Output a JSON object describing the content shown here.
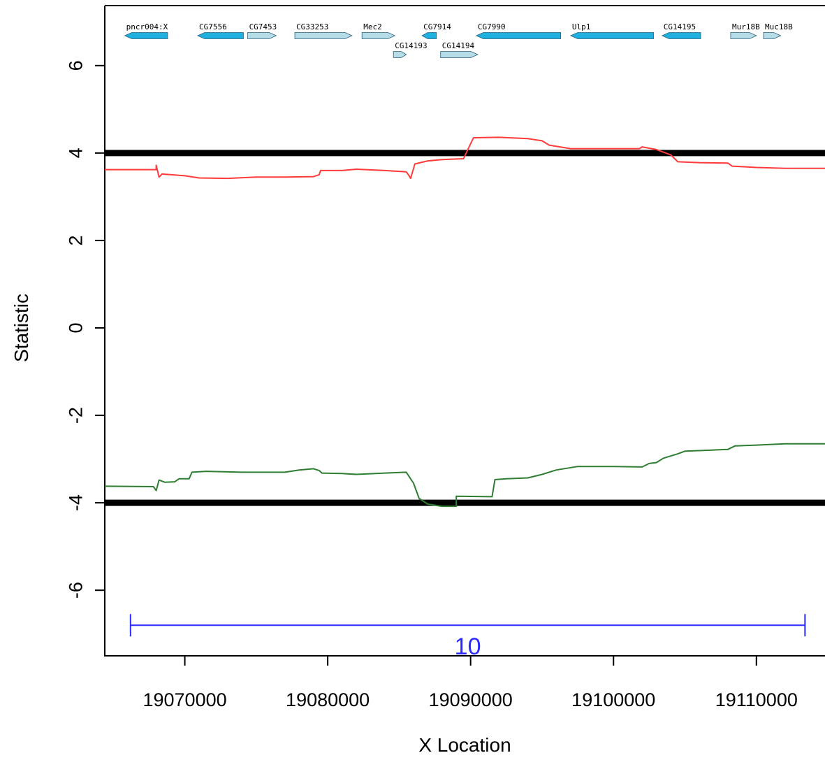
{
  "chart_data": {
    "type": "line",
    "xlabel": "X Location",
    "ylabel": "Statistic",
    "xlim": [
      19064400,
      19114800
    ],
    "ylim": [
      -7.5,
      7.5
    ],
    "x_ticks": [
      {
        "value": 19070000,
        "label": "19070000"
      },
      {
        "value": 19080000,
        "label": "19080000"
      },
      {
        "value": 19090000,
        "label": "19090000"
      },
      {
        "value": 19100000,
        "label": "19100000"
      },
      {
        "value": 19110000,
        "label": "19110000"
      }
    ],
    "y_ticks": [
      {
        "value": 6,
        "label": "6"
      },
      {
        "value": 4,
        "label": "4"
      },
      {
        "value": 2,
        "label": "2"
      },
      {
        "value": 0,
        "label": "0"
      },
      {
        "value": -2,
        "label": "-2"
      },
      {
        "value": -4,
        "label": "-4"
      },
      {
        "value": -6,
        "label": "-6"
      }
    ],
    "thresholds": [
      {
        "value": 4.0,
        "color": "#000000"
      },
      {
        "value": -4.0,
        "color": "#000000"
      }
    ],
    "series": [
      {
        "color": "#ff3b3b",
        "points": [
          [
            19064400,
            3.62
          ],
          [
            19068000,
            3.62
          ],
          [
            19068000,
            3.72
          ],
          [
            19068200,
            3.45
          ],
          [
            19068400,
            3.52
          ],
          [
            19070000,
            3.48
          ],
          [
            19071000,
            3.43
          ],
          [
            19073000,
            3.42
          ],
          [
            19075000,
            3.45
          ],
          [
            19077000,
            3.45
          ],
          [
            19079000,
            3.46
          ],
          [
            19079400,
            3.5
          ],
          [
            19079500,
            3.6
          ],
          [
            19081000,
            3.6
          ],
          [
            19082000,
            3.63
          ],
          [
            19084000,
            3.6
          ],
          [
            19085500,
            3.57
          ],
          [
            19085700,
            3.48
          ],
          [
            19085800,
            3.42
          ],
          [
            19086100,
            3.75
          ],
          [
            19087000,
            3.82
          ],
          [
            19088000,
            3.85
          ],
          [
            19089500,
            3.87
          ],
          [
            19090200,
            4.35
          ],
          [
            19092000,
            4.36
          ],
          [
            19094000,
            4.33
          ],
          [
            19095000,
            4.28
          ],
          [
            19095500,
            4.18
          ],
          [
            19097000,
            4.1
          ],
          [
            19100000,
            4.1
          ],
          [
            19101800,
            4.1
          ],
          [
            19102000,
            4.14
          ],
          [
            19103000,
            4.08
          ],
          [
            19104000,
            3.96
          ],
          [
            19104500,
            3.8
          ],
          [
            19106000,
            3.78
          ],
          [
            19108000,
            3.77
          ],
          [
            19108300,
            3.7
          ],
          [
            19110000,
            3.67
          ],
          [
            19112000,
            3.65
          ],
          [
            19114800,
            3.65
          ]
        ]
      },
      {
        "color": "#2e7d32",
        "points": [
          [
            19064400,
            -3.62
          ],
          [
            19067800,
            -3.63
          ],
          [
            19068000,
            -3.72
          ],
          [
            19068200,
            -3.48
          ],
          [
            19068600,
            -3.53
          ],
          [
            19069300,
            -3.52
          ],
          [
            19069600,
            -3.45
          ],
          [
            19070300,
            -3.45
          ],
          [
            19070500,
            -3.3
          ],
          [
            19071500,
            -3.28
          ],
          [
            19074000,
            -3.3
          ],
          [
            19077000,
            -3.3
          ],
          [
            19078000,
            -3.25
          ],
          [
            19079000,
            -3.22
          ],
          [
            19079400,
            -3.26
          ],
          [
            19079600,
            -3.32
          ],
          [
            19081000,
            -3.33
          ],
          [
            19082000,
            -3.35
          ],
          [
            19084000,
            -3.32
          ],
          [
            19085500,
            -3.3
          ],
          [
            19086000,
            -3.55
          ],
          [
            19086400,
            -3.9
          ],
          [
            19087000,
            -4.03
          ],
          [
            19088000,
            -4.08
          ],
          [
            19089000,
            -4.08
          ],
          [
            19089000,
            -3.85
          ],
          [
            19091500,
            -3.86
          ],
          [
            19091700,
            -3.47
          ],
          [
            19092500,
            -3.45
          ],
          [
            19094000,
            -3.43
          ],
          [
            19095000,
            -3.35
          ],
          [
            19096000,
            -3.25
          ],
          [
            19097500,
            -3.17
          ],
          [
            19100000,
            -3.17
          ],
          [
            19102000,
            -3.18
          ],
          [
            19102500,
            -3.1
          ],
          [
            19103000,
            -3.08
          ],
          [
            19103500,
            -2.98
          ],
          [
            19104500,
            -2.88
          ],
          [
            19105000,
            -2.82
          ],
          [
            19108000,
            -2.78
          ],
          [
            19108500,
            -2.7
          ],
          [
            19110000,
            -2.68
          ],
          [
            19112000,
            -2.65
          ],
          [
            19114800,
            -2.65
          ]
        ]
      }
    ],
    "genes": [
      {
        "name": "pncr004:X",
        "start": 19065800,
        "end": 19068800,
        "strand": "-",
        "row": 0,
        "color": "#1fb0e0"
      },
      {
        "name": "CG7556",
        "start": 19070900,
        "end": 19074100,
        "strand": "-",
        "row": 0,
        "color": "#1fb0e0"
      },
      {
        "name": "CG7453",
        "start": 19074400,
        "end": 19076400,
        "strand": "+",
        "row": 0,
        "color": "#b6dce8"
      },
      {
        "name": "CG33253",
        "start": 19077700,
        "end": 19081700,
        "strand": "+",
        "row": 0,
        "color": "#b6dce8"
      },
      {
        "name": "Mec2",
        "start": 19082400,
        "end": 19084700,
        "strand": "+",
        "row": 0,
        "color": "#b6dce8"
      },
      {
        "name": "CG14193",
        "start": 19084600,
        "end": 19085500,
        "strand": "+",
        "row": 1,
        "color": "#b6dce8"
      },
      {
        "name": "CG7914",
        "start": 19086600,
        "end": 19087600,
        "strand": "-",
        "row": 0,
        "color": "#1fb0e0"
      },
      {
        "name": "CG14194",
        "start": 19087900,
        "end": 19090500,
        "strand": "+",
        "row": 1,
        "color": "#b6dce8"
      },
      {
        "name": "CG7990",
        "start": 19090400,
        "end": 19096300,
        "strand": "-",
        "row": 0,
        "color": "#1fb0e0"
      },
      {
        "name": "Ulp1",
        "start": 19097000,
        "end": 19102800,
        "strand": "-",
        "row": 0,
        "color": "#1fb0e0"
      },
      {
        "name": "CG14195",
        "start": 19103400,
        "end": 19106100,
        "strand": "-",
        "row": 0,
        "color": "#1fb0e0"
      },
      {
        "name": "Mur18B",
        "start": 19108200,
        "end": 19110000,
        "strand": "+",
        "row": 0,
        "color": "#b6dce8"
      },
      {
        "name": "Muc18B",
        "start": 19110500,
        "end": 19111700,
        "strand": "+",
        "row": 0,
        "color": "#b6dce8"
      }
    ],
    "span": {
      "start": 19066200,
      "end": 19113400,
      "y": -6.8,
      "label": "10",
      "color": "#2b2bff"
    }
  }
}
